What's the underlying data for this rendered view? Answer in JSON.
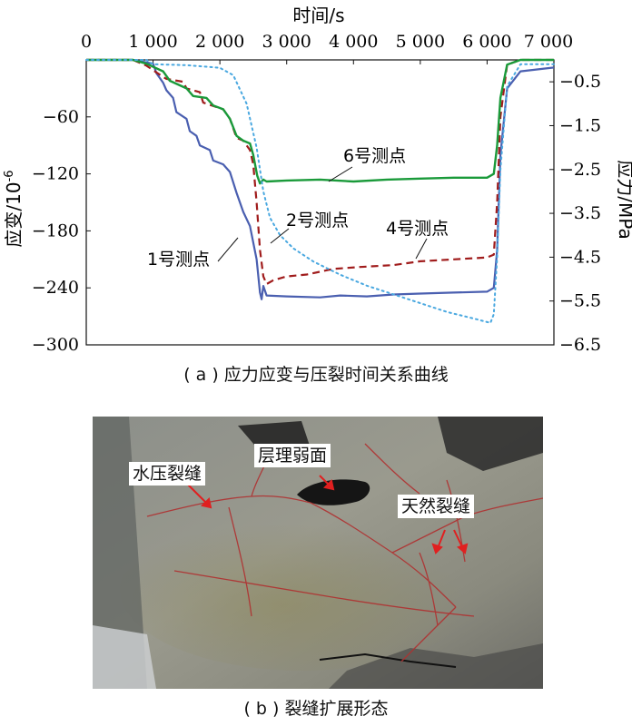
{
  "figure_a": {
    "caption": "( a ) 应力应变与压裂时间关系曲线",
    "chart_data": {
      "type": "line",
      "xlabel": "时间/s",
      "ylabel_left": "应变/10",
      "ylabel_left_exp": "-6",
      "ylabel_right": "应力/MPa",
      "xlim": [
        0,
        7000
      ],
      "ylim_left": [
        -300,
        0
      ],
      "ylim_right": [
        -6.5,
        0
      ],
      "x_ticks": [
        "0",
        "1 000",
        "2 000",
        "3 000",
        "4 000",
        "5 000",
        "6 000",
        "7 000"
      ],
      "y_left_ticks": [
        "-60",
        "-120",
        "-180",
        "-240",
        "-300"
      ],
      "y_right_ticks": [
        "-0.5",
        "-1.5",
        "-2.5",
        "-3.5",
        "-4.5",
        "-5.5",
        "-6.5"
      ],
      "colors": {
        "p1": "#4a5fb0",
        "p2": "#a01c1c",
        "p6": "#1a9a3a",
        "stress": "#4aa8e0"
      },
      "series": [
        {
          "name": "1号测点",
          "axis": "left",
          "color": "#4a5fb0",
          "x": [
            0,
            700,
            1000,
            1050,
            1150,
            1200,
            1300,
            1350,
            1500,
            1550,
            1650,
            1700,
            1850,
            1900,
            2050,
            2150,
            2250,
            2350,
            2450,
            2550,
            2600,
            2625,
            2650,
            2700,
            3000,
            3500,
            3800,
            4200,
            4600,
            5000,
            5500,
            6000,
            6100,
            6150,
            6200,
            6300,
            6500,
            7000
          ],
          "y": [
            0,
            0,
            -4,
            -14,
            -24,
            -32,
            -40,
            -55,
            -62,
            -75,
            -80,
            -90,
            -95,
            -106,
            -110,
            -118,
            -140,
            -160,
            -175,
            -210,
            -245,
            -252,
            -238,
            -248,
            -249,
            -250,
            -248,
            -249,
            -247,
            -246,
            -245,
            -244,
            -240,
            -200,
            -100,
            -30,
            -12,
            -8
          ]
        },
        {
          "name": "2号测点",
          "axis": "left",
          "color": "#a01c1c",
          "x": [
            0,
            700,
            900,
            1150,
            1200,
            1450,
            1500,
            1700,
            1750,
            2050,
            2150,
            2250,
            2350,
            2450,
            2500,
            2550,
            2600,
            2650,
            2700,
            2800,
            3000,
            3300,
            3700,
            4100,
            4600,
            5000,
            5500,
            6000,
            6100,
            6150,
            6200,
            6300,
            6500,
            7000
          ],
          "y": [
            0,
            0,
            -6,
            -18,
            -20,
            -23,
            -30,
            -34,
            -45,
            -52,
            -62,
            -82,
            -85,
            -95,
            -110,
            -150,
            -200,
            -228,
            -236,
            -232,
            -228,
            -226,
            -220,
            -218,
            -216,
            -212,
            -210,
            -208,
            -205,
            -150,
            -60,
            -5,
            0,
            0
          ]
        },
        {
          "name": "6号测点",
          "axis": "left",
          "color": "#1a9a3a",
          "x": [
            0,
            700,
            900,
            1150,
            1250,
            1500,
            1600,
            1800,
            1900,
            2050,
            2150,
            2250,
            2350,
            2450,
            2500,
            2560,
            2600,
            2650,
            2700,
            3000,
            3500,
            4000,
            4500,
            5000,
            5500,
            6000,
            6100,
            6150,
            6200,
            6300,
            6500,
            7000
          ],
          "y": [
            0,
            0,
            -4,
            -12,
            -22,
            -30,
            -38,
            -40,
            -48,
            -52,
            -62,
            -80,
            -85,
            -88,
            -100,
            -122,
            -130,
            -126,
            -128,
            -127,
            -126,
            -128,
            -126,
            -125,
            -124,
            -124,
            -120,
            -90,
            -40,
            -5,
            0,
            0
          ]
        },
        {
          "name": "stress",
          "axis": "right",
          "color": "#4aa8e0",
          "x": [
            0,
            900,
            1000,
            1500,
            2000,
            2200,
            2400,
            2550,
            2650,
            2750,
            2900,
            3100,
            3400,
            3800,
            4200,
            4600,
            5000,
            5400,
            5800,
            6050,
            6100,
            6150,
            6200,
            6300,
            6500,
            7000
          ],
          "y": [
            0,
            0,
            -0.1,
            -0.12,
            -0.18,
            -0.35,
            -1.0,
            -2.0,
            -3.0,
            -3.6,
            -4.0,
            -4.3,
            -4.6,
            -4.9,
            -5.15,
            -5.35,
            -5.55,
            -5.75,
            -5.9,
            -6.0,
            -5.8,
            -4.5,
            -2.5,
            -0.6,
            -0.1,
            -0.1
          ]
        }
      ],
      "annotations": [
        "6号测点",
        "2号测点",
        "4号测点",
        "1号测点"
      ]
    }
  },
  "figure_b": {
    "caption": "( b ) 裂缝扩展形态",
    "labels": {
      "hydraulic": "水压裂缝",
      "bedding": "层理弱面",
      "natural": "天然裂缝"
    }
  }
}
